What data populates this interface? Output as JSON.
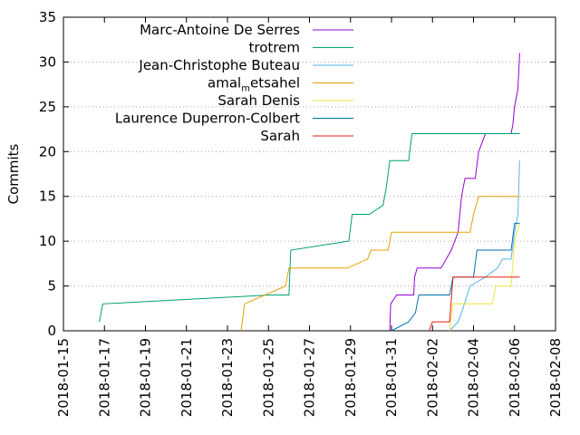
{
  "chart_data": {
    "type": "line",
    "title": "",
    "xlabel": "",
    "ylabel": "Commits",
    "ylim": [
      0,
      35
    ],
    "xlim": [
      "2018-01-15",
      "2018-02-08"
    ],
    "yticks": [
      0,
      5,
      10,
      15,
      20,
      25,
      30,
      35
    ],
    "xticks": [
      "2018-01-15",
      "2018-01-17",
      "2018-01-19",
      "2018-01-21",
      "2018-01-23",
      "2018-01-25",
      "2018-01-27",
      "2018-01-29",
      "2018-01-31",
      "2018-02-02",
      "2018-02-04",
      "2018-02-06",
      "2018-02-08"
    ],
    "grid": true,
    "legend_position": "top-left",
    "series": [
      {
        "name": "Marc-Antoine De Serres",
        "color": "#9400d3",
        "points": [
          [
            "2018-01-30T22:00",
            0
          ],
          [
            "2018-01-30T23:00",
            3
          ],
          [
            "2018-01-31T06:00",
            4
          ],
          [
            "2018-02-01T02:00",
            4
          ],
          [
            "2018-02-01T03:00",
            6
          ],
          [
            "2018-02-01T06:00",
            7
          ],
          [
            "2018-02-02T10:00",
            7
          ],
          [
            "2018-02-02T22:00",
            9
          ],
          [
            "2018-02-03T06:00",
            11
          ],
          [
            "2018-02-03T10:00",
            15
          ],
          [
            "2018-02-03T14:00",
            17
          ],
          [
            "2018-02-04T02:00",
            17
          ],
          [
            "2018-02-04T06:00",
            20
          ],
          [
            "2018-02-04T10:00",
            21
          ],
          [
            "2018-02-04T14:00",
            22
          ],
          [
            "2018-02-05T20:00",
            22
          ],
          [
            "2018-02-05T22:00",
            23
          ],
          [
            "2018-02-06T00:00",
            25
          ],
          [
            "2018-02-06T04:00",
            27
          ],
          [
            "2018-02-06T06:00",
            31
          ]
        ]
      },
      {
        "name": "trotrem",
        "color": "#009e73",
        "points": [
          [
            "2018-01-16T18:00",
            1
          ],
          [
            "2018-01-16T22:00",
            3
          ],
          [
            "2018-01-25T02:00",
            4
          ],
          [
            "2018-01-26T00:00",
            4
          ],
          [
            "2018-01-26T02:00",
            9
          ],
          [
            "2018-01-28T22:00",
            10
          ],
          [
            "2018-01-29T02:00",
            13
          ],
          [
            "2018-01-29T22:00",
            13
          ],
          [
            "2018-01-30T14:00",
            14
          ],
          [
            "2018-01-30T18:00",
            16
          ],
          [
            "2018-01-30T22:00",
            19
          ],
          [
            "2018-01-31T20:00",
            19
          ],
          [
            "2018-02-01T00:00",
            22
          ],
          [
            "2018-02-06T06:00",
            22
          ]
        ]
      },
      {
        "name": "Jean-Christophe Buteau",
        "color": "#56b4e9",
        "points": [
          [
            "2018-02-02T20:00",
            0
          ],
          [
            "2018-02-03T06:00",
            1
          ],
          [
            "2018-02-03T10:00",
            2
          ],
          [
            "2018-02-03T20:00",
            5
          ],
          [
            "2018-02-04T14:00",
            6
          ],
          [
            "2018-02-05T04:00",
            7
          ],
          [
            "2018-02-05T10:00",
            8
          ],
          [
            "2018-02-05T20:00",
            8
          ],
          [
            "2018-02-06T00:00",
            11
          ],
          [
            "2018-02-06T04:00",
            13
          ],
          [
            "2018-02-06T06:00",
            19
          ]
        ]
      },
      {
        "name": "amal_metsahel",
        "color": "#e69f00",
        "points": [
          [
            "2018-01-23T16:00",
            0
          ],
          [
            "2018-01-23T20:00",
            3
          ],
          [
            "2018-01-25T20:00",
            5
          ],
          [
            "2018-01-26T00:00",
            7
          ],
          [
            "2018-01-28T20:00",
            7
          ],
          [
            "2018-01-29T20:00",
            8
          ],
          [
            "2018-01-30T00:00",
            9
          ],
          [
            "2018-01-30T20:00",
            9
          ],
          [
            "2018-01-31T00:00",
            11
          ],
          [
            "2018-02-03T20:00",
            11
          ],
          [
            "2018-02-04T00:00",
            13
          ],
          [
            "2018-02-04T06:00",
            15
          ],
          [
            "2018-02-06T06:00",
            15
          ]
        ]
      },
      {
        "name": "Sarah Denis",
        "color": "#f0e442",
        "points": [
          [
            "2018-02-02T20:00",
            0
          ],
          [
            "2018-02-03T00:00",
            3
          ],
          [
            "2018-02-04T22:00",
            3
          ],
          [
            "2018-02-05T02:00",
            5
          ],
          [
            "2018-02-05T20:00",
            5
          ],
          [
            "2018-02-06T00:00",
            10
          ],
          [
            "2018-02-06T06:00",
            12
          ]
        ]
      },
      {
        "name": "Laurence Duperron-Colbert",
        "color": "#0072b2",
        "points": [
          [
            "2018-01-31T00:00",
            0
          ],
          [
            "2018-01-31T20:00",
            1
          ],
          [
            "2018-02-01T04:00",
            2
          ],
          [
            "2018-02-01T08:00",
            4
          ],
          [
            "2018-02-02T20:00",
            4
          ],
          [
            "2018-02-03T00:00",
            6
          ],
          [
            "2018-02-04T00:00",
            6
          ],
          [
            "2018-02-04T04:00",
            9
          ],
          [
            "2018-02-05T20:00",
            9
          ],
          [
            "2018-02-06T00:00",
            12
          ],
          [
            "2018-02-06T06:00",
            12
          ]
        ]
      },
      {
        "name": "Sarah",
        "color": "#e51e10",
        "points": [
          [
            "2018-02-01T20:00",
            0
          ],
          [
            "2018-02-02T00:00",
            1
          ],
          [
            "2018-02-02T20:00",
            1
          ],
          [
            "2018-02-03T00:00",
            6
          ],
          [
            "2018-02-06T06:00",
            6
          ]
        ]
      }
    ]
  }
}
